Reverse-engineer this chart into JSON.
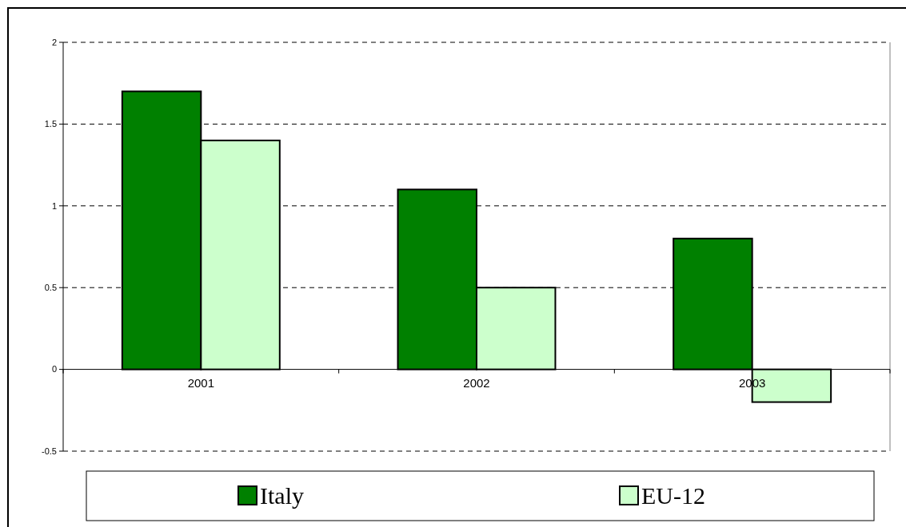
{
  "chart_data": {
    "type": "bar",
    "categories": [
      "2001",
      "2002",
      "2003"
    ],
    "series": [
      {
        "name": "Italy",
        "color": "#008000",
        "values": [
          1.7,
          1.1,
          0.8
        ]
      },
      {
        "name": "EU-12",
        "color": "#ccffcc",
        "values": [
          1.4,
          0.5,
          -0.2
        ]
      }
    ],
    "ylim": [
      -0.5,
      2
    ],
    "yticks": [
      -0.5,
      0,
      0.5,
      1,
      1.5,
      2
    ],
    "grid": "y",
    "legend": "bottom"
  }
}
